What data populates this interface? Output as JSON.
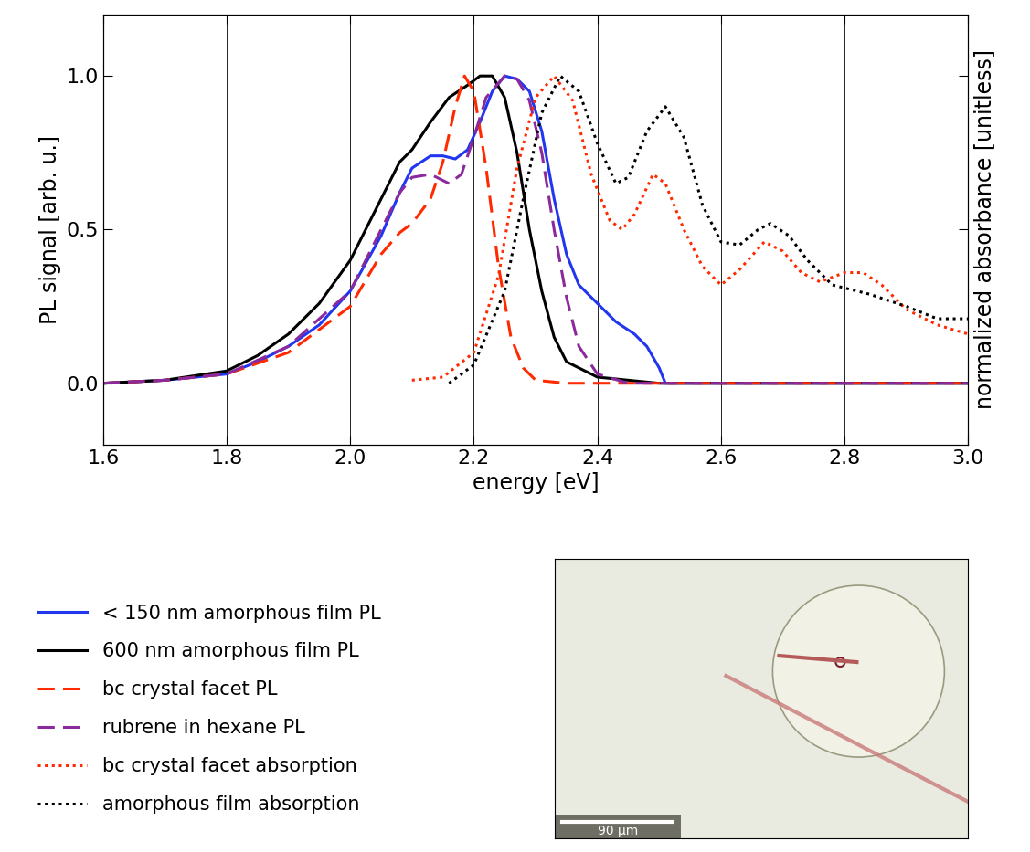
{
  "chart_data": {
    "type": "line",
    "x_label": "energy [eV]",
    "y_label": "PL signal [arb. u.]",
    "y2_label": "normalized absorbance [unitless]",
    "xlim": [
      1.6,
      3.0
    ],
    "xticks": [
      1.6,
      1.8,
      {
        "value": 2.0,
        "label": "2.0"
      },
      2.2,
      2.4,
      2.6,
      2.8,
      {
        "value": 3.0,
        "label": "3.0"
      }
    ],
    "ylim": [
      -0.2,
      1.2
    ],
    "yticks": [
      {
        "value": 0,
        "label": "0.0"
      },
      0.5,
      {
        "value": 1,
        "label": "1.0"
      }
    ],
    "y2lim": [
      -0.2,
      1.2
    ],
    "grid": true,
    "legend": "lower left",
    "series": [
      {
        "name": "< 150 nm amorphous film PL",
        "color": "#2236f0",
        "line_style": "solid",
        "x": [
          1.6,
          1.7,
          1.8,
          1.85,
          1.9,
          1.95,
          2.0,
          2.05,
          2.08,
          2.1,
          2.13,
          2.15,
          2.17,
          2.19,
          2.21,
          2.23,
          2.25,
          2.27,
          2.29,
          2.31,
          2.33,
          2.35,
          2.37,
          2.4,
          2.43,
          2.46,
          2.48,
          2.5,
          2.51,
          2.6,
          3.0
        ],
        "values": [
          0,
          0.01,
          0.03,
          0.07,
          0.12,
          0.19,
          0.3,
          0.48,
          0.62,
          0.7,
          0.74,
          0.74,
          0.73,
          0.76,
          0.85,
          0.95,
          1.0,
          0.99,
          0.95,
          0.82,
          0.6,
          0.42,
          0.32,
          0.26,
          0.2,
          0.16,
          0.12,
          0.05,
          0.0,
          0,
          0
        ]
      },
      {
        "name": "600 nm amorphous film PL",
        "color": "#000000",
        "line_style": "solid",
        "x": [
          1.6,
          1.7,
          1.8,
          1.85,
          1.9,
          1.95,
          2.0,
          2.05,
          2.08,
          2.1,
          2.13,
          2.16,
          2.19,
          2.21,
          2.23,
          2.25,
          2.27,
          2.29,
          2.31,
          2.33,
          2.35,
          2.4,
          2.5,
          3.0
        ],
        "values": [
          0,
          0.01,
          0.04,
          0.09,
          0.16,
          0.26,
          0.4,
          0.6,
          0.72,
          0.76,
          0.85,
          0.93,
          0.97,
          1.0,
          1.0,
          0.93,
          0.75,
          0.5,
          0.3,
          0.15,
          0.07,
          0.02,
          0,
          0
        ]
      },
      {
        "name": "bc crystal facet PL",
        "color": "#ff2a00",
        "line_style": "dashed",
        "x": [
          1.6,
          1.7,
          1.8,
          1.9,
          2.0,
          2.05,
          2.08,
          2.1,
          2.13,
          2.15,
          2.17,
          2.185,
          2.2,
          2.22,
          2.24,
          2.26,
          2.28,
          2.3,
          2.35,
          3.0
        ],
        "values": [
          0,
          0.01,
          0.03,
          0.1,
          0.25,
          0.42,
          0.49,
          0.52,
          0.6,
          0.72,
          0.9,
          1.0,
          0.95,
          0.7,
          0.38,
          0.15,
          0.05,
          0.01,
          0,
          0
        ]
      },
      {
        "name": "rubrene in hexane PL",
        "color": "#8a2a9c",
        "line_style": "dashed",
        "x": [
          1.6,
          1.7,
          1.8,
          1.9,
          2.0,
          2.05,
          2.08,
          2.1,
          2.13,
          2.16,
          2.18,
          2.2,
          2.22,
          2.25,
          2.27,
          2.29,
          2.31,
          2.33,
          2.35,
          2.37,
          2.4,
          2.45,
          3.0
        ],
        "values": [
          0,
          0.01,
          0.03,
          0.12,
          0.3,
          0.5,
          0.62,
          0.67,
          0.68,
          0.65,
          0.68,
          0.8,
          0.93,
          1.0,
          0.99,
          0.92,
          0.75,
          0.5,
          0.28,
          0.12,
          0.03,
          0,
          0
        ]
      },
      {
        "name": "bc crystal facet absorption",
        "color": "#ff2a00",
        "line_style": "dotted",
        "axis": "y2",
        "x": [
          2.1,
          2.15,
          2.2,
          2.24,
          2.27,
          2.3,
          2.33,
          2.36,
          2.39,
          2.42,
          2.44,
          2.46,
          2.49,
          2.51,
          2.54,
          2.57,
          2.6,
          2.63,
          2.67,
          2.7,
          2.73,
          2.76,
          2.8,
          2.83,
          2.86,
          2.9,
          2.95,
          3.0
        ],
        "values": [
          0.01,
          0.02,
          0.1,
          0.35,
          0.7,
          0.93,
          1.0,
          0.92,
          0.68,
          0.53,
          0.5,
          0.55,
          0.68,
          0.65,
          0.5,
          0.38,
          0.32,
          0.37,
          0.46,
          0.43,
          0.36,
          0.33,
          0.36,
          0.36,
          0.32,
          0.24,
          0.19,
          0.16
        ]
      },
      {
        "name": "amorphous film absorption",
        "color": "#000000",
        "line_style": "dotted",
        "axis": "y2",
        "x": [
          2.16,
          2.2,
          2.25,
          2.28,
          2.31,
          2.34,
          2.37,
          2.4,
          2.43,
          2.45,
          2.48,
          2.51,
          2.54,
          2.57,
          2.6,
          2.63,
          2.66,
          2.68,
          2.71,
          2.74,
          2.78,
          2.84,
          2.9,
          2.95,
          3.0
        ],
        "values": [
          0.0,
          0.06,
          0.3,
          0.6,
          0.88,
          1.0,
          0.95,
          0.78,
          0.65,
          0.67,
          0.82,
          0.9,
          0.8,
          0.58,
          0.46,
          0.45,
          0.5,
          0.52,
          0.48,
          0.4,
          0.32,
          0.29,
          0.25,
          0.21,
          0.21
        ]
      }
    ]
  },
  "image": {
    "scale_bar": "90 µm"
  }
}
